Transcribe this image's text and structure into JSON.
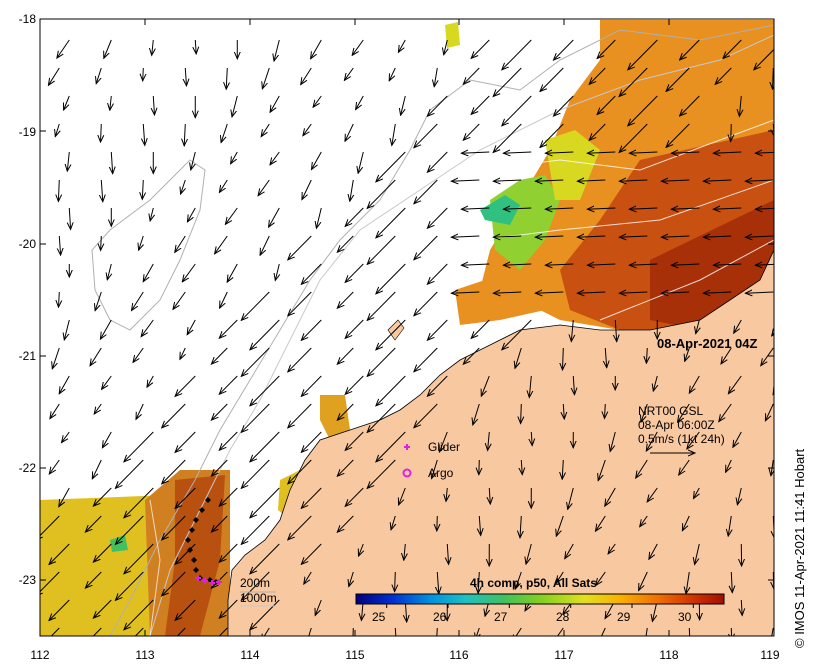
{
  "timestamp": "08-Apr-2021 04Z",
  "credit": "© IMOS 11-Apr-2021 11:41 Hobart",
  "axes": {
    "x_ticks": [
      "112",
      "113",
      "114",
      "115",
      "116",
      "117",
      "118",
      "119"
    ],
    "y_ticks": [
      "-18",
      "-19",
      "-20",
      "-21",
      "-22",
      "-23"
    ]
  },
  "current_legend": {
    "line1": "NRT00 GSL",
    "line2": "08-Apr 06:00Z",
    "line3": "0.5m/s (1kt 24h)"
  },
  "markers": {
    "glider_label": "Glider",
    "argo_label": "Argo",
    "glider_color": "#e020e0",
    "argo_color": "#e020e0"
  },
  "contour_legend": {
    "c200": "200m",
    "c1000": "1000m"
  },
  "colorbar": {
    "title": "4h comp, p50, All Sats",
    "ticks": [
      "25",
      "26",
      "27",
      "28",
      "29",
      "30"
    ],
    "min": 24.5,
    "max": 30.5,
    "colors": [
      "#000080",
      "#0030d0",
      "#0090e0",
      "#20c0c0",
      "#40c060",
      "#80d020",
      "#e0e020",
      "#f8b000",
      "#f07000",
      "#d03000",
      "#a01000"
    ]
  },
  "land_color": "#f8c8a0"
}
